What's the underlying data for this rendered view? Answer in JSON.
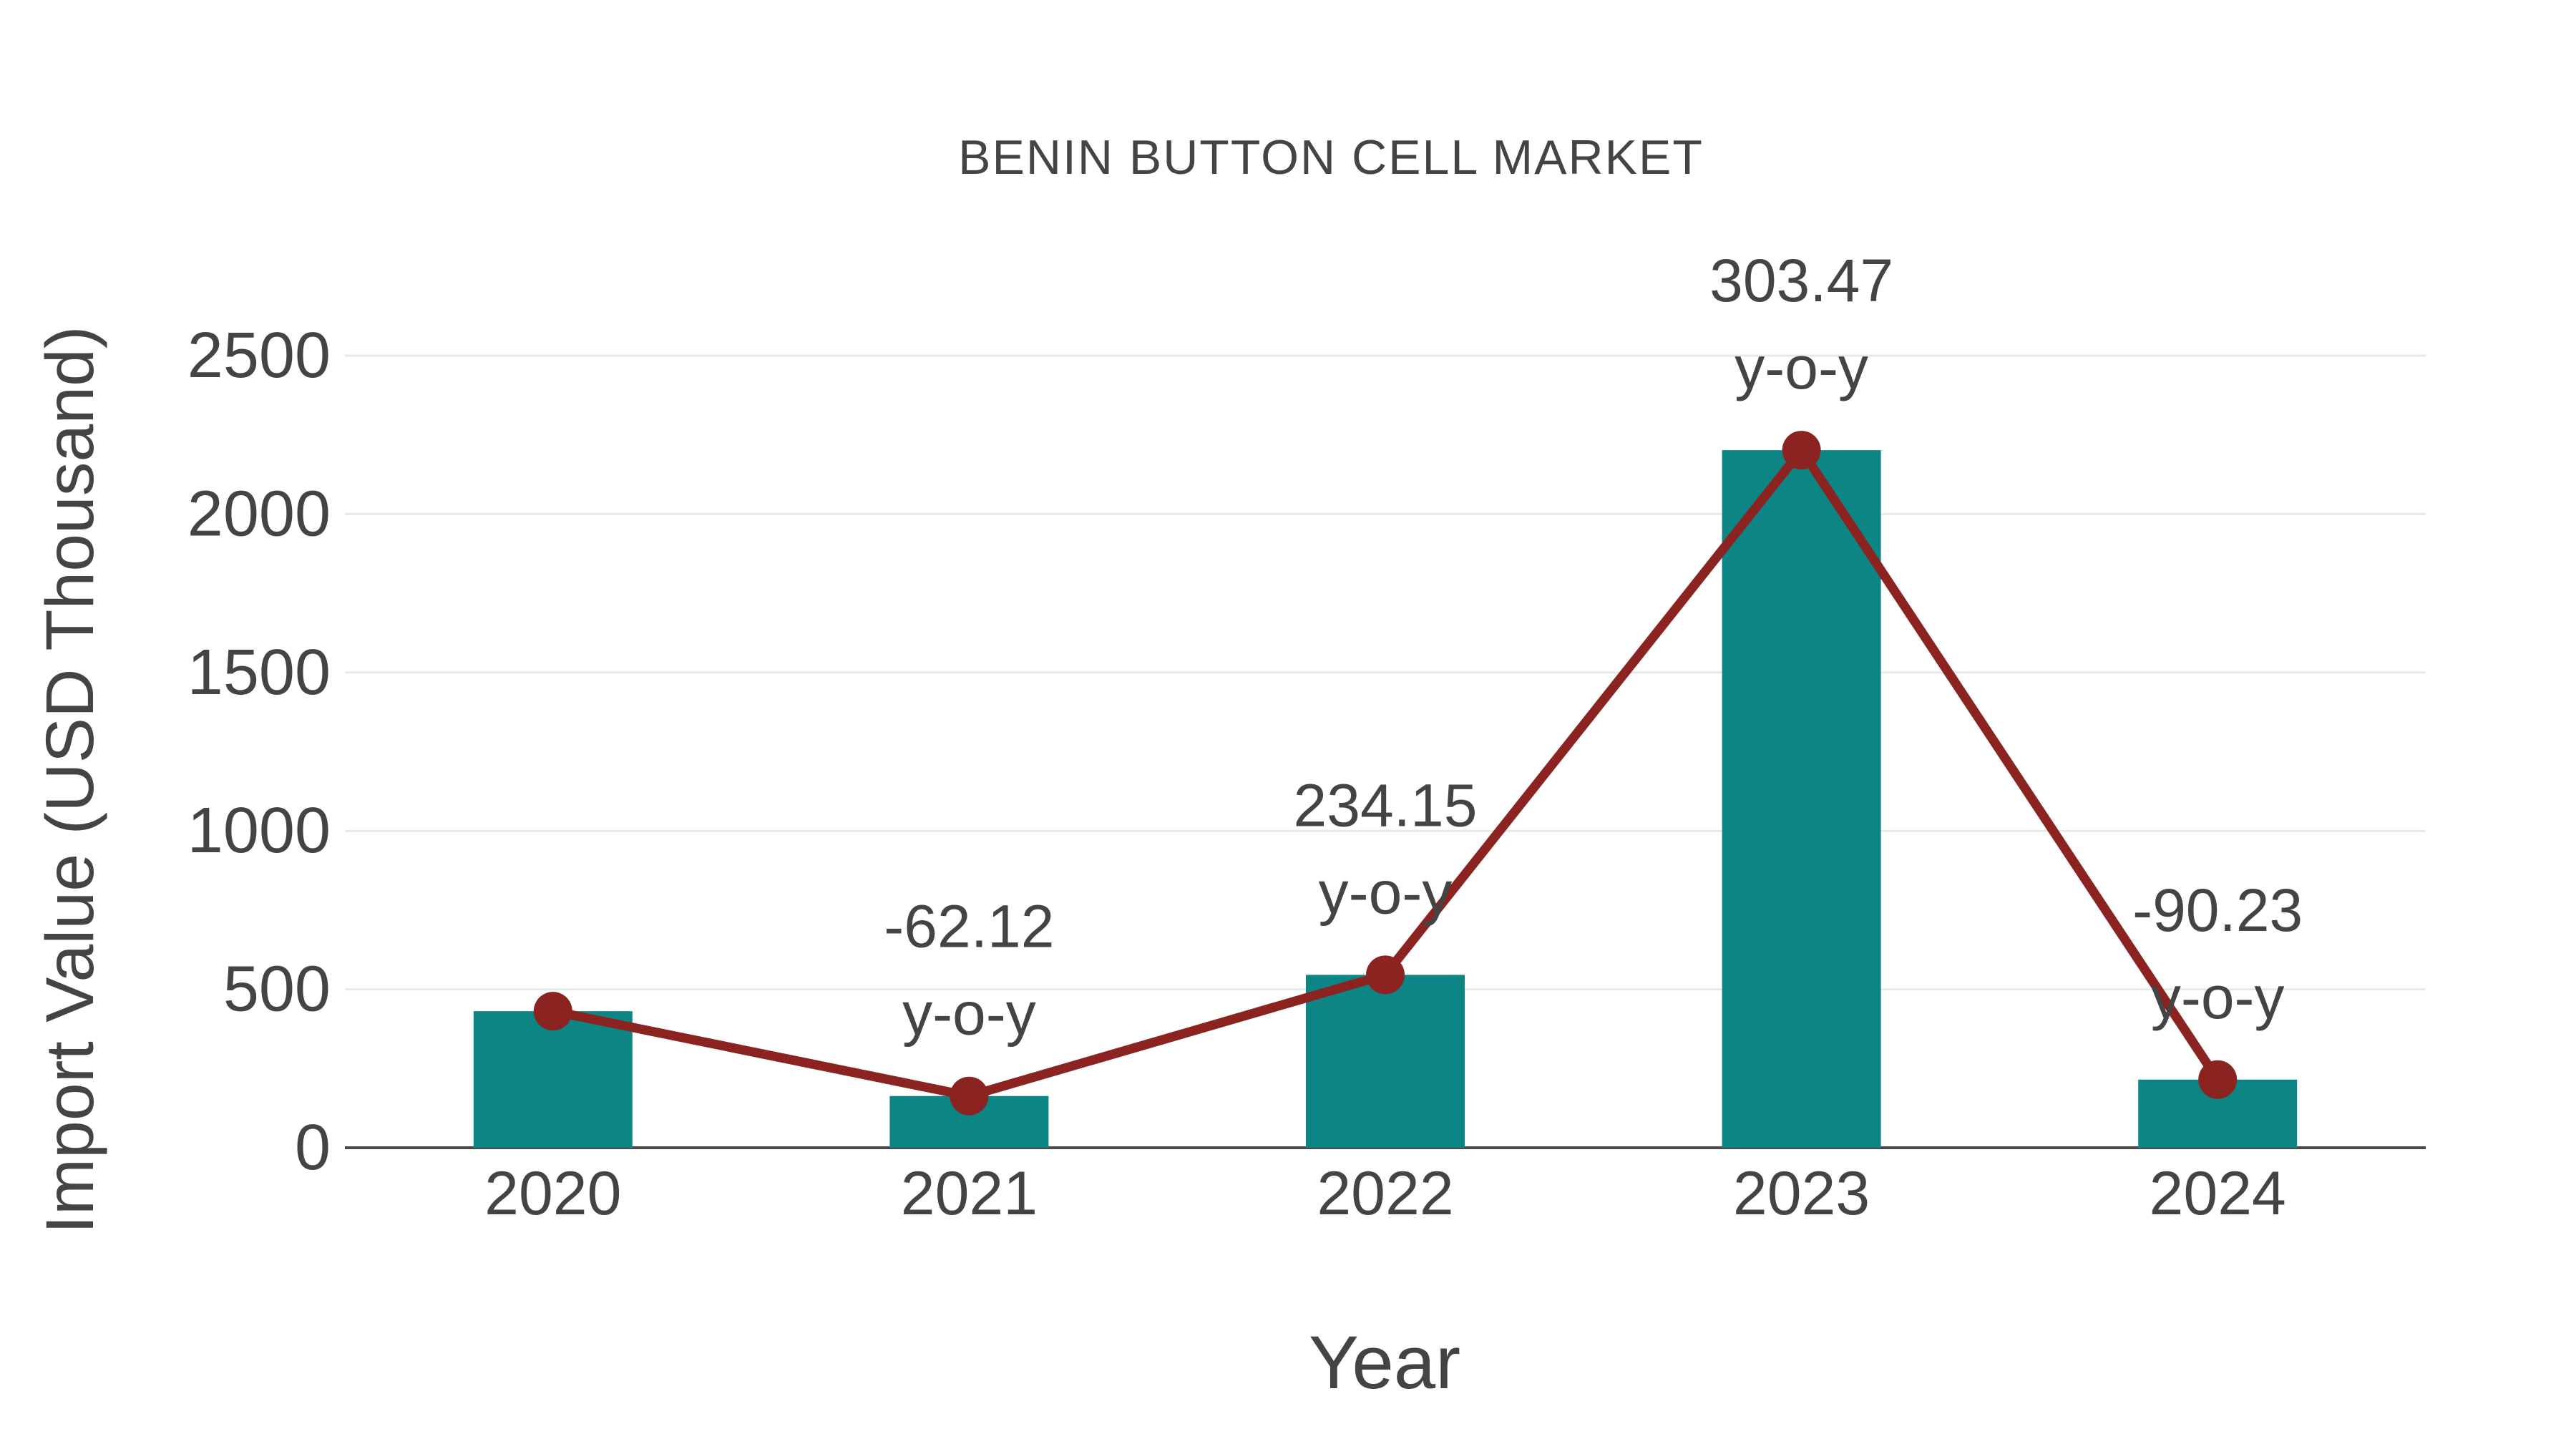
{
  "page": {
    "background": "#ffffff"
  },
  "chart_data": {
    "type": "bar",
    "title": "BENIN BUTTON CELL MARKET",
    "xlabel": "Year",
    "ylabel": "Import Value (USD Thousand)",
    "categories": [
      "2020",
      "2021",
      "2022",
      "2023",
      "2024"
    ],
    "values": [
      431,
      163.3,
      545.7,
      2201.6,
      215.1
    ],
    "line_overlay": {
      "description": "dark-red line with round markers tracing the bar tops",
      "values": [
        431,
        163.3,
        545.7,
        2201.6,
        215.1
      ]
    },
    "annotations": [
      {
        "category": "2021",
        "line1": "-62.12",
        "line2": "y-o-y"
      },
      {
        "category": "2022",
        "line1": "234.15",
        "line2": "y-o-y"
      },
      {
        "category": "2023",
        "line1": "303.47",
        "line2": "y-o-y"
      },
      {
        "category": "2024",
        "line1": "-90.23",
        "line2": "y-o-y"
      }
    ],
    "yticks": [
      0,
      500,
      1000,
      1500,
      2000,
      2500
    ],
    "ylim": [
      0,
      2500
    ],
    "grid": true,
    "legend_position": "none",
    "colors": {
      "bar": "#0e8585",
      "line": "#8b2321",
      "text": "#444444",
      "grid": "#e8e8e8",
      "axis": "#4a4a4a"
    }
  }
}
